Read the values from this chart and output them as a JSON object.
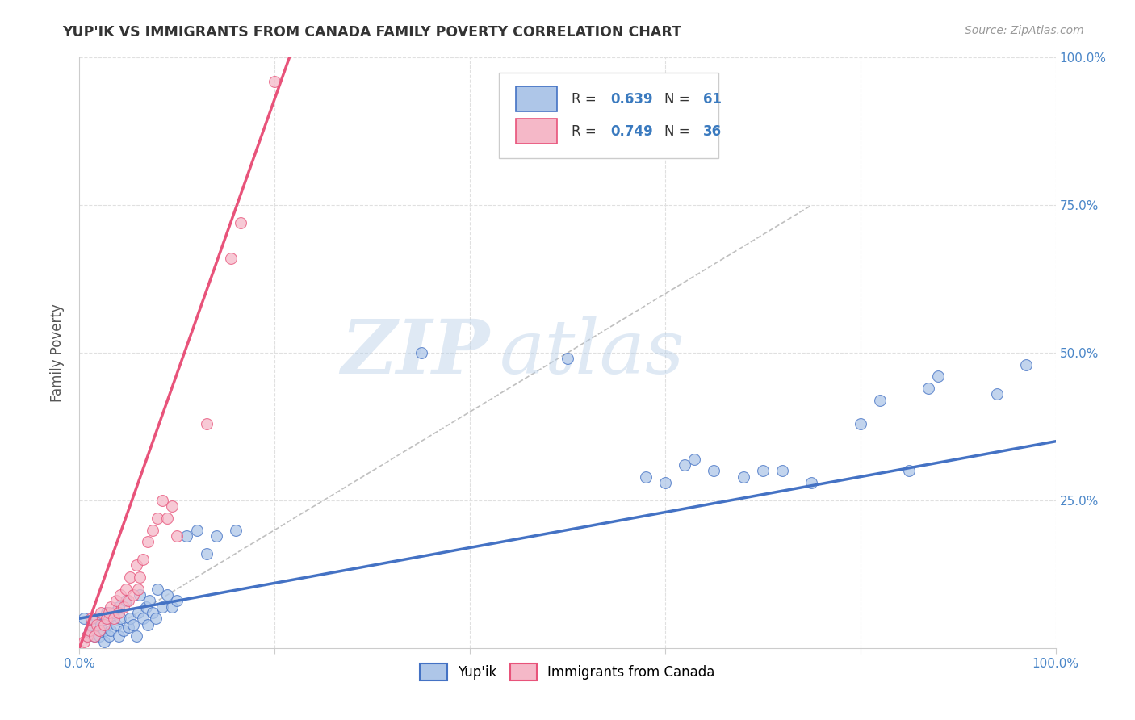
{
  "title": "YUP'IK VS IMMIGRANTS FROM CANADA FAMILY POVERTY CORRELATION CHART",
  "source": "Source: ZipAtlas.com",
  "ylabel": "Family Poverty",
  "xlim": [
    0.0,
    1.0
  ],
  "ylim": [
    0.0,
    1.0
  ],
  "x_ticks": [
    0.0,
    0.2,
    0.4,
    0.6,
    0.8,
    1.0
  ],
  "y_ticks": [
    0.0,
    0.25,
    0.5,
    0.75,
    1.0
  ],
  "x_tick_labels": [
    "0.0%",
    "",
    "",
    "",
    "",
    "100.0%"
  ],
  "y_tick_labels_right": [
    "",
    "25.0%",
    "50.0%",
    "75.0%",
    "100.0%"
  ],
  "watermark_zip": "ZIP",
  "watermark_atlas": "atlas",
  "color_blue": "#aec6e8",
  "color_pink": "#f5b8c8",
  "line_blue": "#4472c4",
  "line_pink": "#e8537a",
  "background_color": "#ffffff",
  "grid_color": "#e0e0e0",
  "blue_scatter_x": [
    0.005,
    0.008,
    0.01,
    0.012,
    0.015,
    0.018,
    0.02,
    0.022,
    0.025,
    0.025,
    0.028,
    0.03,
    0.03,
    0.032,
    0.035,
    0.038,
    0.04,
    0.04,
    0.042,
    0.045,
    0.048,
    0.05,
    0.052,
    0.055,
    0.058,
    0.06,
    0.062,
    0.065,
    0.068,
    0.07,
    0.072,
    0.075,
    0.078,
    0.08,
    0.085,
    0.09,
    0.095,
    0.1,
    0.11,
    0.12,
    0.13,
    0.14,
    0.16,
    0.35,
    0.5,
    0.58,
    0.6,
    0.62,
    0.63,
    0.65,
    0.68,
    0.7,
    0.72,
    0.75,
    0.8,
    0.82,
    0.85,
    0.87,
    0.88,
    0.94,
    0.97
  ],
  "blue_scatter_y": [
    0.05,
    0.02,
    0.03,
    0.04,
    0.02,
    0.05,
    0.02,
    0.04,
    0.01,
    0.03,
    0.06,
    0.02,
    0.05,
    0.03,
    0.06,
    0.04,
    0.02,
    0.07,
    0.05,
    0.03,
    0.08,
    0.035,
    0.05,
    0.04,
    0.02,
    0.06,
    0.09,
    0.05,
    0.07,
    0.04,
    0.08,
    0.06,
    0.05,
    0.1,
    0.07,
    0.09,
    0.07,
    0.08,
    0.19,
    0.2,
    0.16,
    0.19,
    0.2,
    0.5,
    0.49,
    0.29,
    0.28,
    0.31,
    0.32,
    0.3,
    0.29,
    0.3,
    0.3,
    0.28,
    0.38,
    0.42,
    0.3,
    0.44,
    0.46,
    0.43,
    0.48
  ],
  "pink_scatter_x": [
    0.005,
    0.008,
    0.01,
    0.012,
    0.015,
    0.018,
    0.02,
    0.022,
    0.025,
    0.028,
    0.03,
    0.032,
    0.035,
    0.038,
    0.04,
    0.042,
    0.045,
    0.048,
    0.05,
    0.052,
    0.055,
    0.058,
    0.06,
    0.062,
    0.065,
    0.07,
    0.075,
    0.08,
    0.085,
    0.09,
    0.095,
    0.1,
    0.13,
    0.155,
    0.165,
    0.2
  ],
  "pink_scatter_y": [
    0.01,
    0.02,
    0.03,
    0.05,
    0.02,
    0.04,
    0.03,
    0.06,
    0.04,
    0.05,
    0.06,
    0.07,
    0.05,
    0.08,
    0.06,
    0.09,
    0.07,
    0.1,
    0.08,
    0.12,
    0.09,
    0.14,
    0.1,
    0.12,
    0.15,
    0.18,
    0.2,
    0.22,
    0.25,
    0.22,
    0.24,
    0.19,
    0.38,
    0.66,
    0.72,
    0.96
  ],
  "blue_line_x": [
    0.0,
    1.0
  ],
  "blue_line_y": [
    0.05,
    0.35
  ],
  "pink_line_x_start": 0.0,
  "pink_line_x_end": 0.215,
  "pink_line_y_start": 0.0,
  "pink_line_y_end": 1.0
}
